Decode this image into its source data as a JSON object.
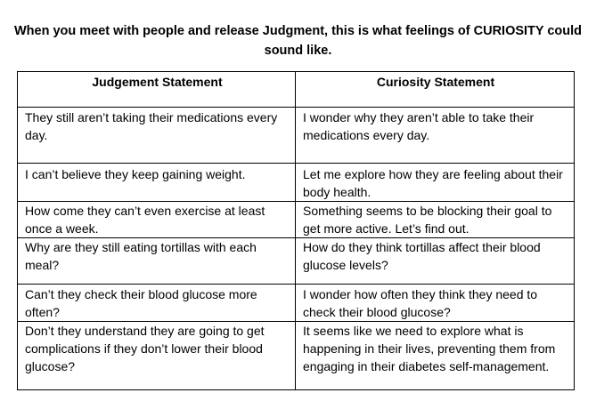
{
  "title": "When you meet with people and release Judgment, this is what feelings of CURIOSITY could sound like.",
  "table": {
    "headers": [
      "Judgement Statement",
      "Curiosity Statement"
    ],
    "rows": [
      {
        "judgement": "They still aren’t taking their medications every day.",
        "curiosity": "I wonder why they aren’t able to take their medications every day."
      },
      {
        "judgement": "I can’t believe they keep gaining weight.",
        "curiosity": "Let me explore how they are feeling about their body health."
      },
      {
        "judgement": "How come they can’t even exercise at least once a week.",
        "curiosity": "Something seems to be blocking their goal to get more active. Let’s find out."
      },
      {
        "judgement": "Why are they still eating tortillas with each meal?",
        "curiosity": "How do they think tortillas affect their blood glucose levels?"
      },
      {
        "judgement": "Can’t they check their blood glucose more often?",
        "curiosity": "I wonder how often they think they need to check their blood glucose?"
      },
      {
        "judgement": "Don’t they understand they are going to get complications if they don’t lower their blood glucose?",
        "curiosity": "It seems like we need to explore what is happening in their lives, preventing them from engaging in their diabetes self-management."
      }
    ]
  }
}
